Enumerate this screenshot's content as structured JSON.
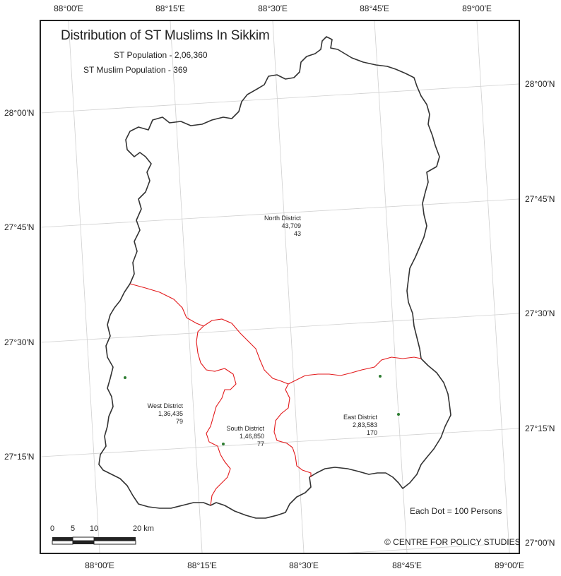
{
  "map": {
    "title": "Distribution of ST Muslims In Sikkim",
    "subtitle_1": "ST Population - 2,06,360",
    "subtitle_2": "ST Muslim Population - 369",
    "legend": "Each Dot = 100 Persons",
    "credit": "© CENTRE FOR POLICY STUDIES",
    "colors": {
      "state_boundary": "#333333",
      "district_boundary": "#e31a1c",
      "dot": "#2e7d32",
      "graticule": "#d0d0d0"
    }
  },
  "graticule": {
    "top_ticks": [
      "88°00′E",
      "88°15′E",
      "88°30′E",
      "88°45′E",
      "89°00′E"
    ],
    "bottom_ticks": [
      "88°00′E",
      "88°15′E",
      "88°30′E",
      "88°45′E",
      "89°00′E"
    ],
    "left_ticks": [
      "28°00′N",
      "27°45′N",
      "27°30′N",
      "27°15′N"
    ],
    "right_ticks": [
      "28°00′N",
      "27°45′N",
      "27°30′N",
      "27°15′N",
      "27°00′N"
    ]
  },
  "districts": [
    {
      "name": "North  District",
      "st_population": "43,709",
      "st_muslims": "43",
      "dots": 0
    },
    {
      "name": "West District",
      "st_population": "1,36,435",
      "st_muslims": "79",
      "dots": 1
    },
    {
      "name": "South District",
      "st_population": "1,46,850",
      "st_muslims": "77",
      "dots": 1
    },
    {
      "name": "East District",
      "st_population": "2,83,583",
      "st_muslims": "170",
      "dots": 2
    }
  ],
  "scale_bar": {
    "labels": [
      "0",
      "5",
      "10",
      "20 km"
    ]
  }
}
